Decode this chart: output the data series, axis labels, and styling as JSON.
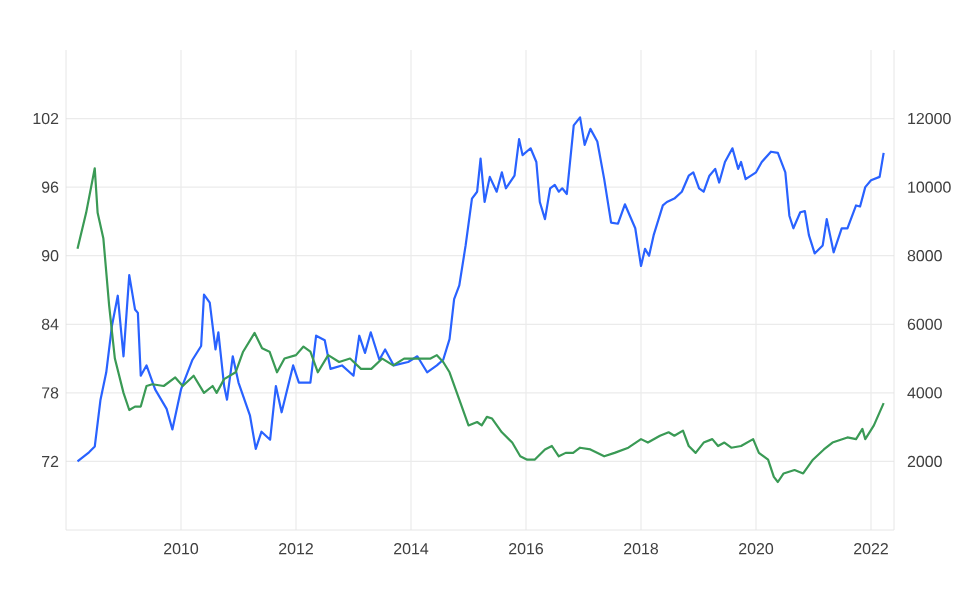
{
  "chart_data": {
    "type": "line",
    "grid": true,
    "xlim": [
      2008.0,
      2022.4
    ],
    "xticks": [
      2010,
      2012,
      2014,
      2016,
      2018,
      2020,
      2022
    ],
    "ylim": [
      66,
      108
    ],
    "yticks": [
      72,
      78,
      84,
      90,
      96,
      102
    ],
    "y2lim": [
      0,
      14000
    ],
    "y2ticks": [
      2000,
      4000,
      6000,
      8000,
      10000,
      12000
    ],
    "series": [
      {
        "color": "#2962ff",
        "axis": "y",
        "x": [
          2008.2,
          2008.4,
          2008.5,
          2008.6,
          2008.7,
          2008.8,
          2008.9,
          2009.0,
          2009.1,
          2009.2,
          2009.25,
          2009.3,
          2009.4,
          2009.55,
          2009.75,
          2009.85,
          2010.0,
          2010.2,
          2010.35,
          2010.4,
          2010.5,
          2010.6,
          2010.65,
          2010.75,
          2010.8,
          2010.9,
          2011.0,
          2011.2,
          2011.3,
          2011.4,
          2011.55,
          2011.65,
          2011.75,
          2011.95,
          2012.05,
          2012.25,
          2012.35,
          2012.5,
          2012.6,
          2012.8,
          2013.0,
          2013.1,
          2013.2,
          2013.3,
          2013.45,
          2013.55,
          2013.7,
          2013.95,
          2014.11,
          2014.28,
          2014.45,
          2014.56,
          2014.67,
          2014.75,
          2014.84,
          2014.95,
          2015.06,
          2015.15,
          2015.21,
          2015.28,
          2015.37,
          2015.49,
          2015.58,
          2015.65,
          2015.8,
          2015.88,
          2015.94,
          2016.08,
          2016.18,
          2016.24,
          2016.33,
          2016.42,
          2016.5,
          2016.57,
          2016.63,
          2016.71,
          2016.83,
          2016.94,
          2017.02,
          2017.12,
          2017.24,
          2017.36,
          2017.48,
          2017.6,
          2017.72,
          2017.9,
          2018.0,
          2018.07,
          2018.14,
          2018.22,
          2018.38,
          2018.45,
          2018.58,
          2018.71,
          2018.83,
          2018.91,
          2019.01,
          2019.09,
          2019.19,
          2019.29,
          2019.36,
          2019.46,
          2019.59,
          2019.69,
          2019.74,
          2019.82,
          2020.0,
          2020.1,
          2020.26,
          2020.38,
          2020.51,
          2020.58,
          2020.65,
          2020.77,
          2020.85,
          2020.92,
          2021.02,
          2021.16,
          2021.23,
          2021.35,
          2021.49,
          2021.59,
          2021.74,
          2021.81,
          2021.9,
          2022.0,
          2022.15,
          2022.22
        ],
        "values": [
          72.0,
          72.8,
          73.3,
          77.4,
          79.8,
          83.9,
          86.5,
          81.2,
          88.3,
          85.3,
          85.0,
          79.5,
          80.4,
          78.3,
          76.6,
          74.8,
          78.3,
          80.9,
          82.1,
          86.6,
          85.9,
          81.8,
          83.3,
          78.6,
          77.4,
          81.2,
          78.9,
          76.0,
          73.1,
          74.6,
          73.9,
          78.6,
          76.3,
          80.4,
          78.9,
          78.9,
          83.0,
          82.6,
          80.1,
          80.4,
          79.5,
          83.0,
          81.5,
          83.3,
          80.9,
          81.8,
          80.4,
          80.7,
          81.2,
          79.8,
          80.4,
          80.9,
          82.7,
          86.2,
          87.4,
          90.9,
          95.0,
          95.6,
          98.5,
          94.7,
          96.9,
          95.6,
          97.3,
          95.9,
          97.0,
          100.2,
          98.8,
          99.4,
          98.2,
          94.7,
          93.2,
          95.9,
          96.2,
          95.6,
          95.9,
          95.4,
          101.4,
          102.1,
          99.7,
          101.1,
          100.0,
          96.7,
          92.9,
          92.8,
          94.5,
          92.4,
          89.1,
          90.6,
          90.0,
          91.8,
          94.4,
          94.7,
          95.0,
          95.6,
          97.0,
          97.3,
          95.9,
          95.6,
          97.0,
          97.6,
          96.4,
          98.2,
          99.4,
          97.6,
          98.2,
          96.7,
          97.3,
          98.2,
          99.1,
          99.0,
          97.3,
          93.5,
          92.4,
          93.8,
          93.9,
          91.8,
          90.2,
          90.9,
          93.2,
          90.3,
          92.4,
          92.4,
          94.4,
          94.3,
          96.0,
          96.6,
          96.9,
          99.0
        ]
      },
      {
        "color": "#3a9a55",
        "axis": "y2",
        "x": [
          2008.2,
          2008.35,
          2008.5,
          2008.55,
          2008.65,
          2008.75,
          2008.85,
          2009.0,
          2009.1,
          2009.2,
          2009.3,
          2009.4,
          2009.5,
          2009.7,
          2009.9,
          2010.03,
          2010.22,
          2010.4,
          2010.55,
          2010.62,
          2010.75,
          2010.95,
          2011.08,
          2011.28,
          2011.41,
          2011.54,
          2011.67,
          2011.8,
          2012.0,
          2012.13,
          2012.25,
          2012.38,
          2012.56,
          2012.75,
          2012.94,
          2013.13,
          2013.31,
          2013.5,
          2013.69,
          2013.88,
          2014.11,
          2014.34,
          2014.45,
          2014.56,
          2014.67,
          2014.84,
          2015.0,
          2015.15,
          2015.23,
          2015.32,
          2015.41,
          2015.58,
          2015.76,
          2015.9,
          2016.02,
          2016.15,
          2016.33,
          2016.45,
          2016.57,
          2016.69,
          2016.82,
          2016.94,
          2017.12,
          2017.36,
          2017.54,
          2017.78,
          2018.0,
          2018.12,
          2018.33,
          2018.48,
          2018.58,
          2018.73,
          2018.83,
          2018.95,
          2019.09,
          2019.24,
          2019.34,
          2019.45,
          2019.57,
          2019.74,
          2019.95,
          2020.05,
          2020.21,
          2020.31,
          2020.38,
          2020.48,
          2020.67,
          2020.82,
          2020.99,
          2021.18,
          2021.33,
          2021.59,
          2021.74,
          2021.85,
          2021.9,
          2022.05,
          2022.22
        ],
        "values": [
          8200,
          9250,
          10550,
          9250,
          8500,
          6550,
          5000,
          4000,
          3500,
          3600,
          3600,
          4200,
          4250,
          4200,
          4450,
          4200,
          4500,
          4000,
          4200,
          4000,
          4400,
          4600,
          5200,
          5750,
          5300,
          5200,
          4600,
          5000,
          5100,
          5350,
          5200,
          4600,
          5100,
          4900,
          5000,
          4700,
          4700,
          5000,
          4800,
          5000,
          5000,
          5000,
          5100,
          4900,
          4600,
          3800,
          3050,
          3150,
          3050,
          3300,
          3250,
          2850,
          2550,
          2150,
          2050,
          2050,
          2350,
          2450,
          2150,
          2250,
          2250,
          2400,
          2350,
          2150,
          2250,
          2400,
          2650,
          2550,
          2750,
          2850,
          2750,
          2900,
          2450,
          2250,
          2550,
          2650,
          2450,
          2550,
          2400,
          2450,
          2650,
          2250,
          2050,
          1550,
          1400,
          1650,
          1750,
          1650,
          2050,
          2350,
          2550,
          2700,
          2650,
          2950,
          2650,
          3050,
          3700
        ]
      }
    ]
  }
}
